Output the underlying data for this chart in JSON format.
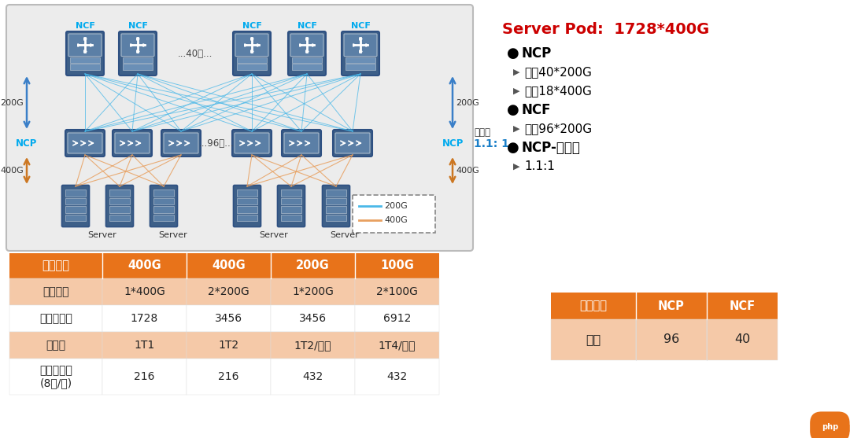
{
  "bg_color": "#ffffff",
  "diagram_bg": "#ececec",
  "title_right": "Server Pod:  1728*400G",
  "title_color": "#cc0000",
  "bullet_items": [
    {
      "type": "bullet",
      "text": "NCP"
    },
    {
      "type": "arrow",
      "text": "上行40*200G"
    },
    {
      "type": "arrow",
      "text": "下行18*400G"
    },
    {
      "type": "bullet",
      "text": "NCF"
    },
    {
      "type": "arrow",
      "text": "下行96*200G"
    },
    {
      "type": "bullet",
      "text": "NCP-收敛比"
    },
    {
      "type": "arrow",
      "text": "1.1:1"
    }
  ],
  "table1_header": [
    "端口速率",
    "400G",
    "400G",
    "200G",
    "100G"
  ],
  "table1_rows": [
    [
      "网卡形态",
      "1*400G",
      "2*200G",
      "1*200G",
      "2*100G"
    ],
    [
      "网络端口数",
      "1728",
      "3456",
      "3456",
      "6912"
    ],
    [
      "连接线",
      "1T1",
      "1T2",
      "1T2/降速",
      "1T4/降速"
    ],
    [
      "服务器数量\n(8卡/台)",
      "216",
      "216",
      "432",
      "432"
    ]
  ],
  "table2_header": [
    "网络设备",
    "NCP",
    "NCF"
  ],
  "table2_rows": [
    [
      "数量",
      "96",
      "40"
    ]
  ],
  "orange": "#e8731a",
  "orange_light": "#f5c9a8",
  "node_color": "#5b7fa6",
  "node_color_dark": "#3d5f88",
  "node_border": "#2e5082",
  "server_color": "#5b7fa6",
  "legend_200g": "#4ab8e8",
  "legend_400g": "#e8a060",
  "ncf_label_color": "#00aaee",
  "ncp_label_color": "#00aaee",
  "arrow_200g_color": "#3a7fc8",
  "arrow_400g_color": "#cc7722",
  "收敛比_color": "#1a7fc8",
  "side_arrow_color": "#3a7fc8",
  "side_arrow_400g": "#cc7722",
  "php_color": "#e8731a"
}
